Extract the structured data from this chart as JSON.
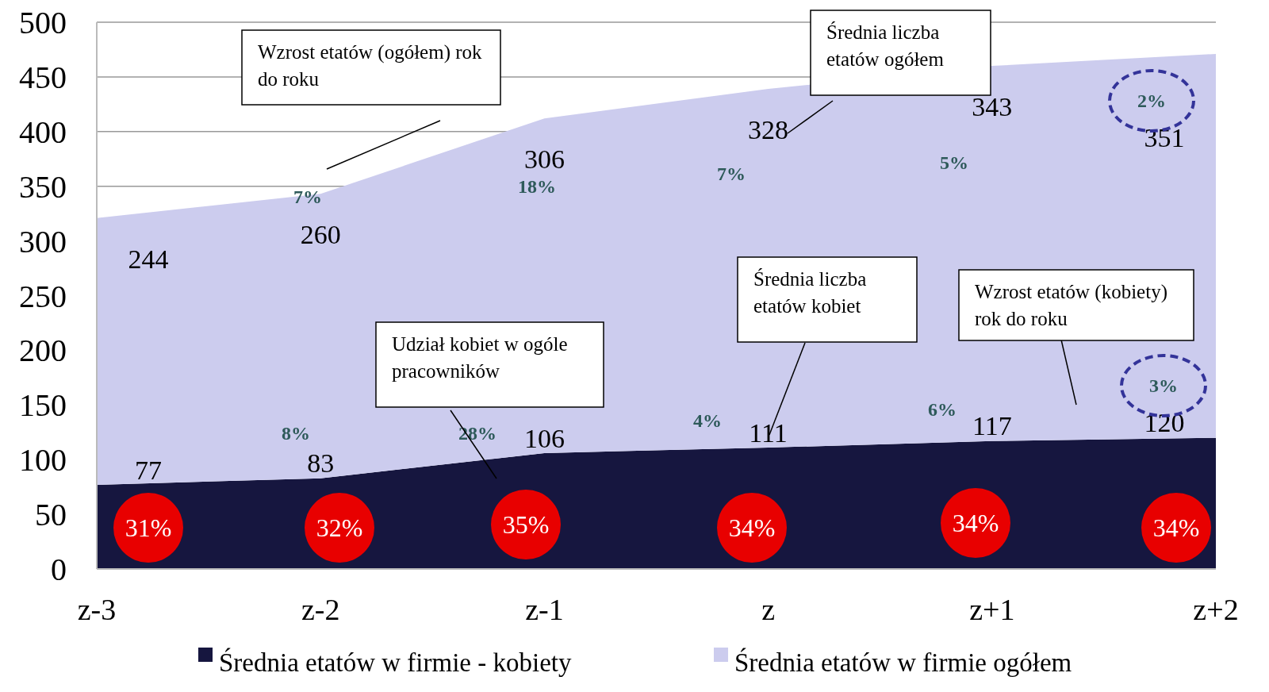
{
  "chart_data": {
    "type": "area",
    "stacked": true,
    "categories": [
      "z-3",
      "z-2",
      "z-1",
      "z",
      "z+1",
      "z+2"
    ],
    "series": [
      {
        "name": "Średnia etatów w firmie - kobiety",
        "color": "#16163f",
        "values": [
          77,
          83,
          106,
          111,
          117,
          120
        ]
      },
      {
        "name": "Średnia etatów w firmie ogółem",
        "color": "#ccccee",
        "values": [
          244,
          260,
          306,
          328,
          343,
          351
        ]
      }
    ],
    "ylim": [
      0,
      500
    ],
    "yticks": [
      0,
      50,
      100,
      150,
      200,
      250,
      300,
      350,
      400,
      450,
      500
    ],
    "grid": "y",
    "legend": "bottom",
    "data_labels": true,
    "annotations": [
      "31%",
      "32%",
      "35%",
      "34%",
      "34%",
      "34%",
      "7%",
      "18%",
      "7%",
      "5%",
      "2%",
      "8%",
      "28%",
      "4%",
      "6%",
      "3%",
      "Wzrost etatów (ogółem) rok do roku",
      "Średnia liczba etatów ogółem",
      "Średnia liczba etatów kobiet",
      "Wzrost etatów (kobiety) rok do roku",
      "Udział kobiet w ogóle pracowników"
    ]
  }
}
